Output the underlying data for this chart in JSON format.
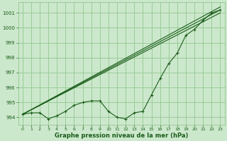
{
  "background_color": "#cce8cc",
  "grid_color": "#99cc99",
  "line_color": "#1a5c1a",
  "marker_color": "#1a5c1a",
  "title": "Graphe pression niveau de la mer (hPa)",
  "xlim": [
    -0.5,
    23.5
  ],
  "ylim": [
    993.5,
    1001.7
  ],
  "yticks": [
    994,
    995,
    996,
    997,
    998,
    999,
    1000,
    1001
  ],
  "xticks": [
    0,
    1,
    2,
    3,
    4,
    5,
    6,
    7,
    8,
    9,
    10,
    11,
    12,
    13,
    14,
    15,
    16,
    17,
    18,
    19,
    20,
    21,
    22,
    23
  ],
  "straight_lines": [
    [
      [
        0,
        23
      ],
      [
        994.2,
        1001.0
      ]
    ],
    [
      [
        0,
        23
      ],
      [
        994.2,
        1001.2
      ]
    ],
    [
      [
        0,
        23
      ],
      [
        994.2,
        1001.4
      ]
    ]
  ],
  "marker_series": [
    994.2,
    994.3,
    994.3,
    993.9,
    994.1,
    994.4,
    994.8,
    995.0,
    995.1,
    995.1,
    994.4,
    994.0,
    993.9,
    994.3,
    994.4,
    995.5,
    996.6,
    997.6,
    998.3,
    999.5,
    999.9,
    1000.5,
    1001.0,
    1001.2
  ]
}
